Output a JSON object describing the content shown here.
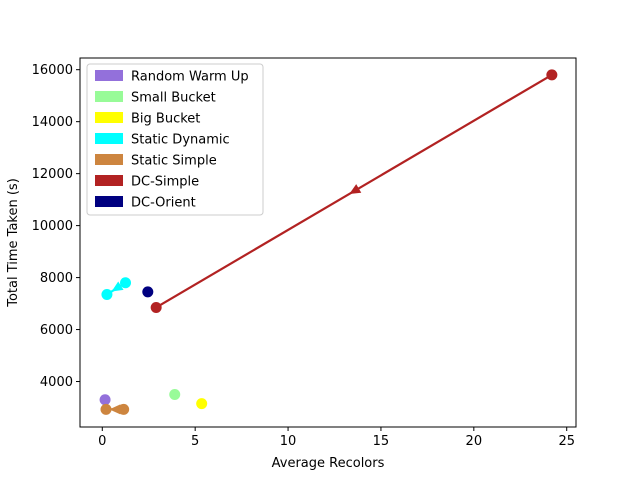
{
  "chart_data": {
    "type": "scatter",
    "xlabel": "Average Recolors",
    "ylabel": "Total Time Taken (s)",
    "xlim": [
      -1.2,
      25.5
    ],
    "ylim": [
      2250,
      16450
    ],
    "xticks": [
      0,
      5,
      10,
      15,
      20,
      25
    ],
    "yticks": [
      4000,
      6000,
      8000,
      10000,
      12000,
      14000,
      16000
    ],
    "grid": false,
    "legend_position": "upper-left",
    "series": [
      {
        "name": "Random Warm Up",
        "color": "#9370DB",
        "points": [
          {
            "x": 0.15,
            "y": 3300
          }
        ],
        "arrows": []
      },
      {
        "name": "Small Bucket",
        "color": "#98FB98",
        "points": [
          {
            "x": 3.9,
            "y": 3500
          }
        ],
        "arrows": []
      },
      {
        "name": "Big Bucket",
        "color": "#FFFF00",
        "points": [
          {
            "x": 5.35,
            "y": 3150
          }
        ],
        "arrows": []
      },
      {
        "name": "Static Dynamic",
        "color": "#00FFFF",
        "points": [
          {
            "x": 0.25,
            "y": 7350
          },
          {
            "x": 1.25,
            "y": 7800
          }
        ],
        "arrows": [
          {
            "from": [
              1.25,
              7800
            ],
            "to": [
              0.25,
              7350
            ]
          }
        ]
      },
      {
        "name": "Static Simple",
        "color": "#CD853F",
        "points": [
          {
            "x": 0.2,
            "y": 2930
          },
          {
            "x": 1.15,
            "y": 2930
          }
        ],
        "arrows": [
          {
            "from": [
              1.15,
              2930
            ],
            "to": [
              0.2,
              2930
            ]
          }
        ]
      },
      {
        "name": "DC-Simple",
        "color": "#B22222",
        "points": [
          {
            "x": 2.9,
            "y": 6850
          },
          {
            "x": 24.2,
            "y": 15800
          }
        ],
        "arrows": [
          {
            "from": [
              24.2,
              15800
            ],
            "to": [
              2.9,
              6850
            ]
          }
        ]
      },
      {
        "name": "DC-Orient",
        "color": "#000080",
        "points": [
          {
            "x": 2.45,
            "y": 7450
          }
        ],
        "arrows": []
      }
    ]
  }
}
